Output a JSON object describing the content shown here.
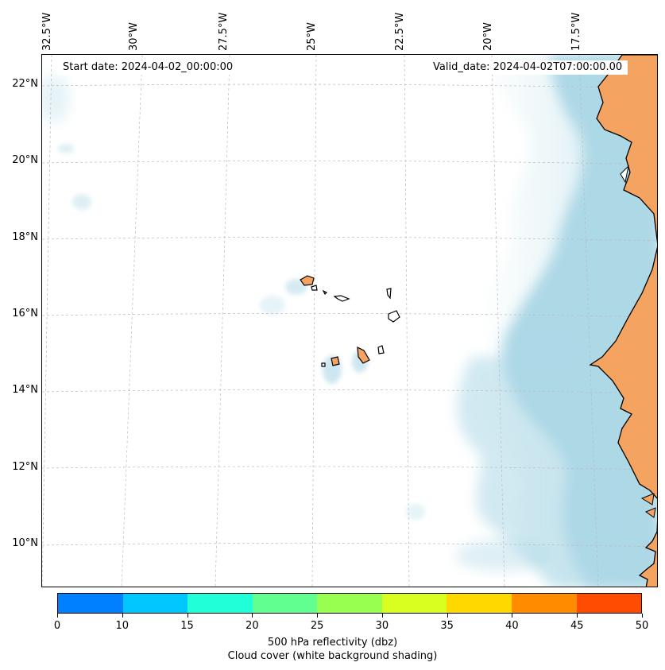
{
  "header": {
    "start_date": "Start date: 2024-04-02_00:00:00",
    "valid_date": "Valid_date: 2024-04-02T07:00:00.00"
  },
  "map": {
    "lon_labels": [
      "32.5°W",
      "30°W",
      "27.5°W",
      "25°W",
      "22.5°W",
      "20°W",
      "17.5°W"
    ],
    "lat_labels": [
      "22°N",
      "20°N",
      "18°N",
      "16°N",
      "14°N",
      "12°N",
      "10°N"
    ],
    "colors": {
      "land": "#f4a460",
      "cloud": "#add8e6",
      "gridline": "#bbbbbb",
      "coast": "#000000"
    },
    "features": [
      "cape-verde-islands",
      "west-africa-coast",
      "cloud-cover-band"
    ]
  },
  "colorbar": {
    "ticks": [
      "0",
      "10",
      "15",
      "20",
      "25",
      "30",
      "35",
      "40",
      "45",
      "50"
    ],
    "colors": [
      "#0080ff",
      "#00c8ff",
      "#20ffd8",
      "#60ff90",
      "#98ff50",
      "#d8ff20",
      "#ffd800",
      "#ff8c00",
      "#ff4c00"
    ],
    "label_line1": "500 hPa reflectivity (dbz)",
    "label_line2": "Cloud cover (white background shading)"
  }
}
